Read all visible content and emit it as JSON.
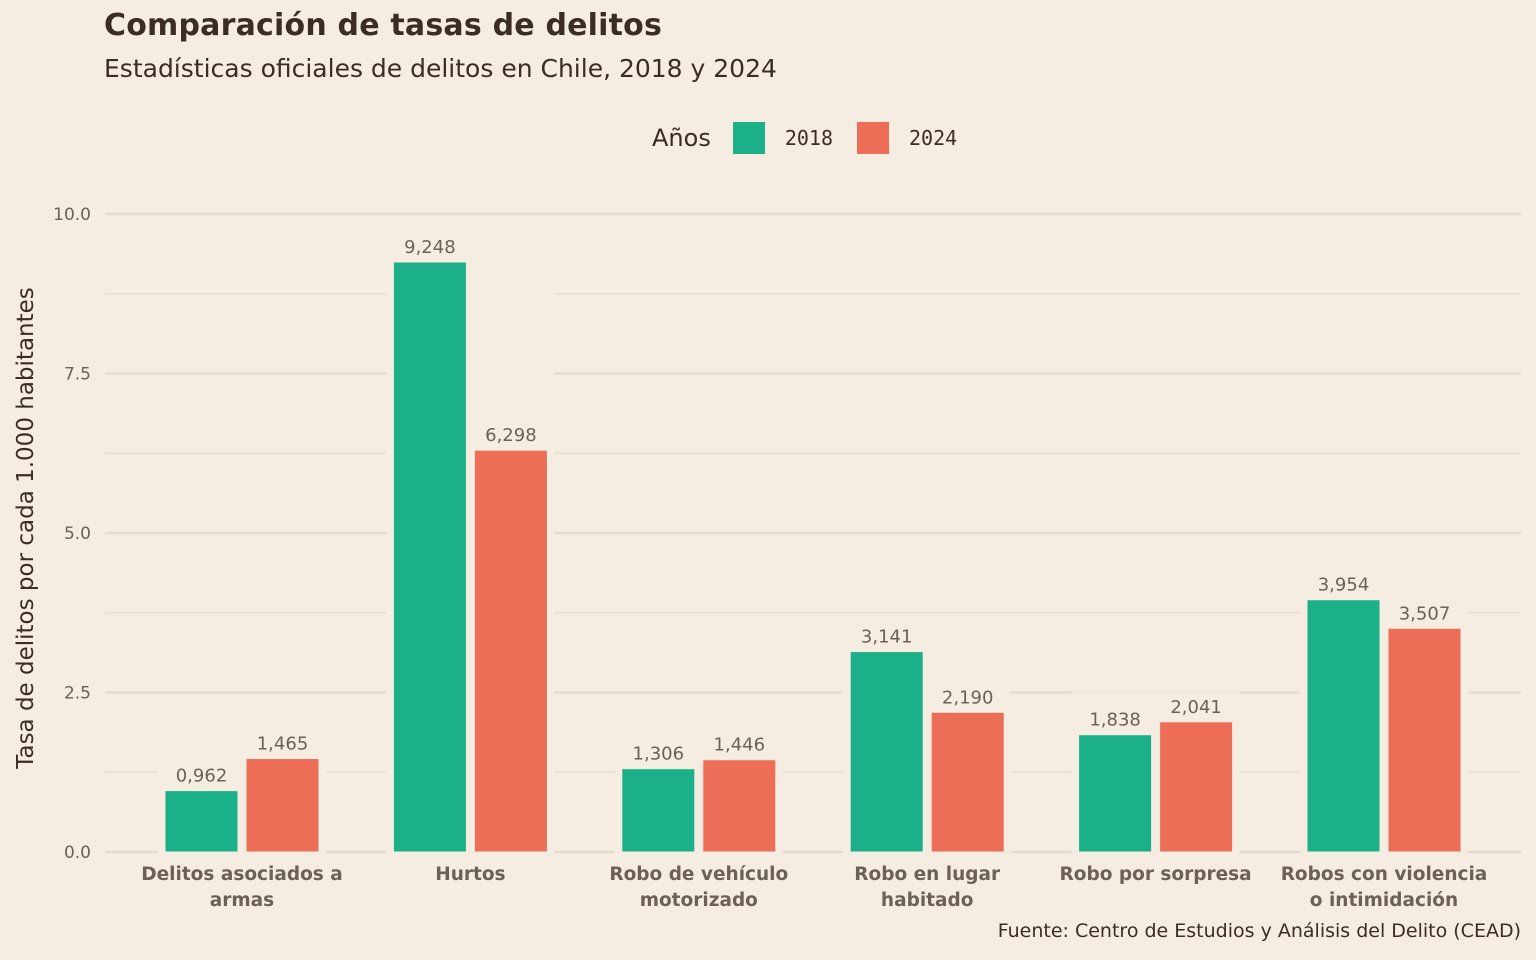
{
  "chart_data": {
    "type": "bar",
    "title": "Comparación de tasas de delitos",
    "subtitle": "Estadísticas oficiales de delitos en Chile, 2018 y 2024",
    "xlabel": "",
    "ylabel": "Tasa de delitos por cada 1.000 habitantes",
    "caption": "Fuente: Centro de Estudios y Análisis del Delito (CEAD)",
    "ylim": [
      0,
      10
    ],
    "yticks": [
      0,
      2.5,
      5,
      7.5,
      10
    ],
    "ytick_labels": [
      "0.0",
      "2.5",
      "5.0",
      "7.5",
      "10.0"
    ],
    "grid": true,
    "legend": {
      "title": "Años",
      "placement": "top-center",
      "entries": [
        "2018",
        "2024"
      ]
    },
    "categories": [
      [
        "Delitos asociados a",
        "armas"
      ],
      [
        "Hurtos"
      ],
      [
        "Robo de vehículo",
        "motorizado"
      ],
      [
        "Robo en lugar",
        "habitado"
      ],
      [
        "Robo por sorpresa"
      ],
      [
        "Robos con violencia",
        "o intimidación"
      ]
    ],
    "series": [
      {
        "name": "2018",
        "color": "#1bb087",
        "values": [
          0.962,
          9.248,
          1.306,
          3.141,
          1.838,
          3.954
        ],
        "labels": [
          "0,962",
          "9,248",
          "1,306",
          "3,141",
          "1,838",
          "3,954"
        ]
      },
      {
        "name": "2024",
        "color": "#ec6e57",
        "values": [
          1.465,
          6.298,
          1.446,
          2.19,
          2.041,
          3.507
        ],
        "labels": [
          "1,465",
          "6,298",
          "1,446",
          "2,190",
          "2,041",
          "3,507"
        ]
      }
    ]
  },
  "colors": {
    "background": "#f5ede1",
    "grid": "#e4dbcf",
    "text_dark": "#3a2e24",
    "text_muted": "#6b6157"
  }
}
